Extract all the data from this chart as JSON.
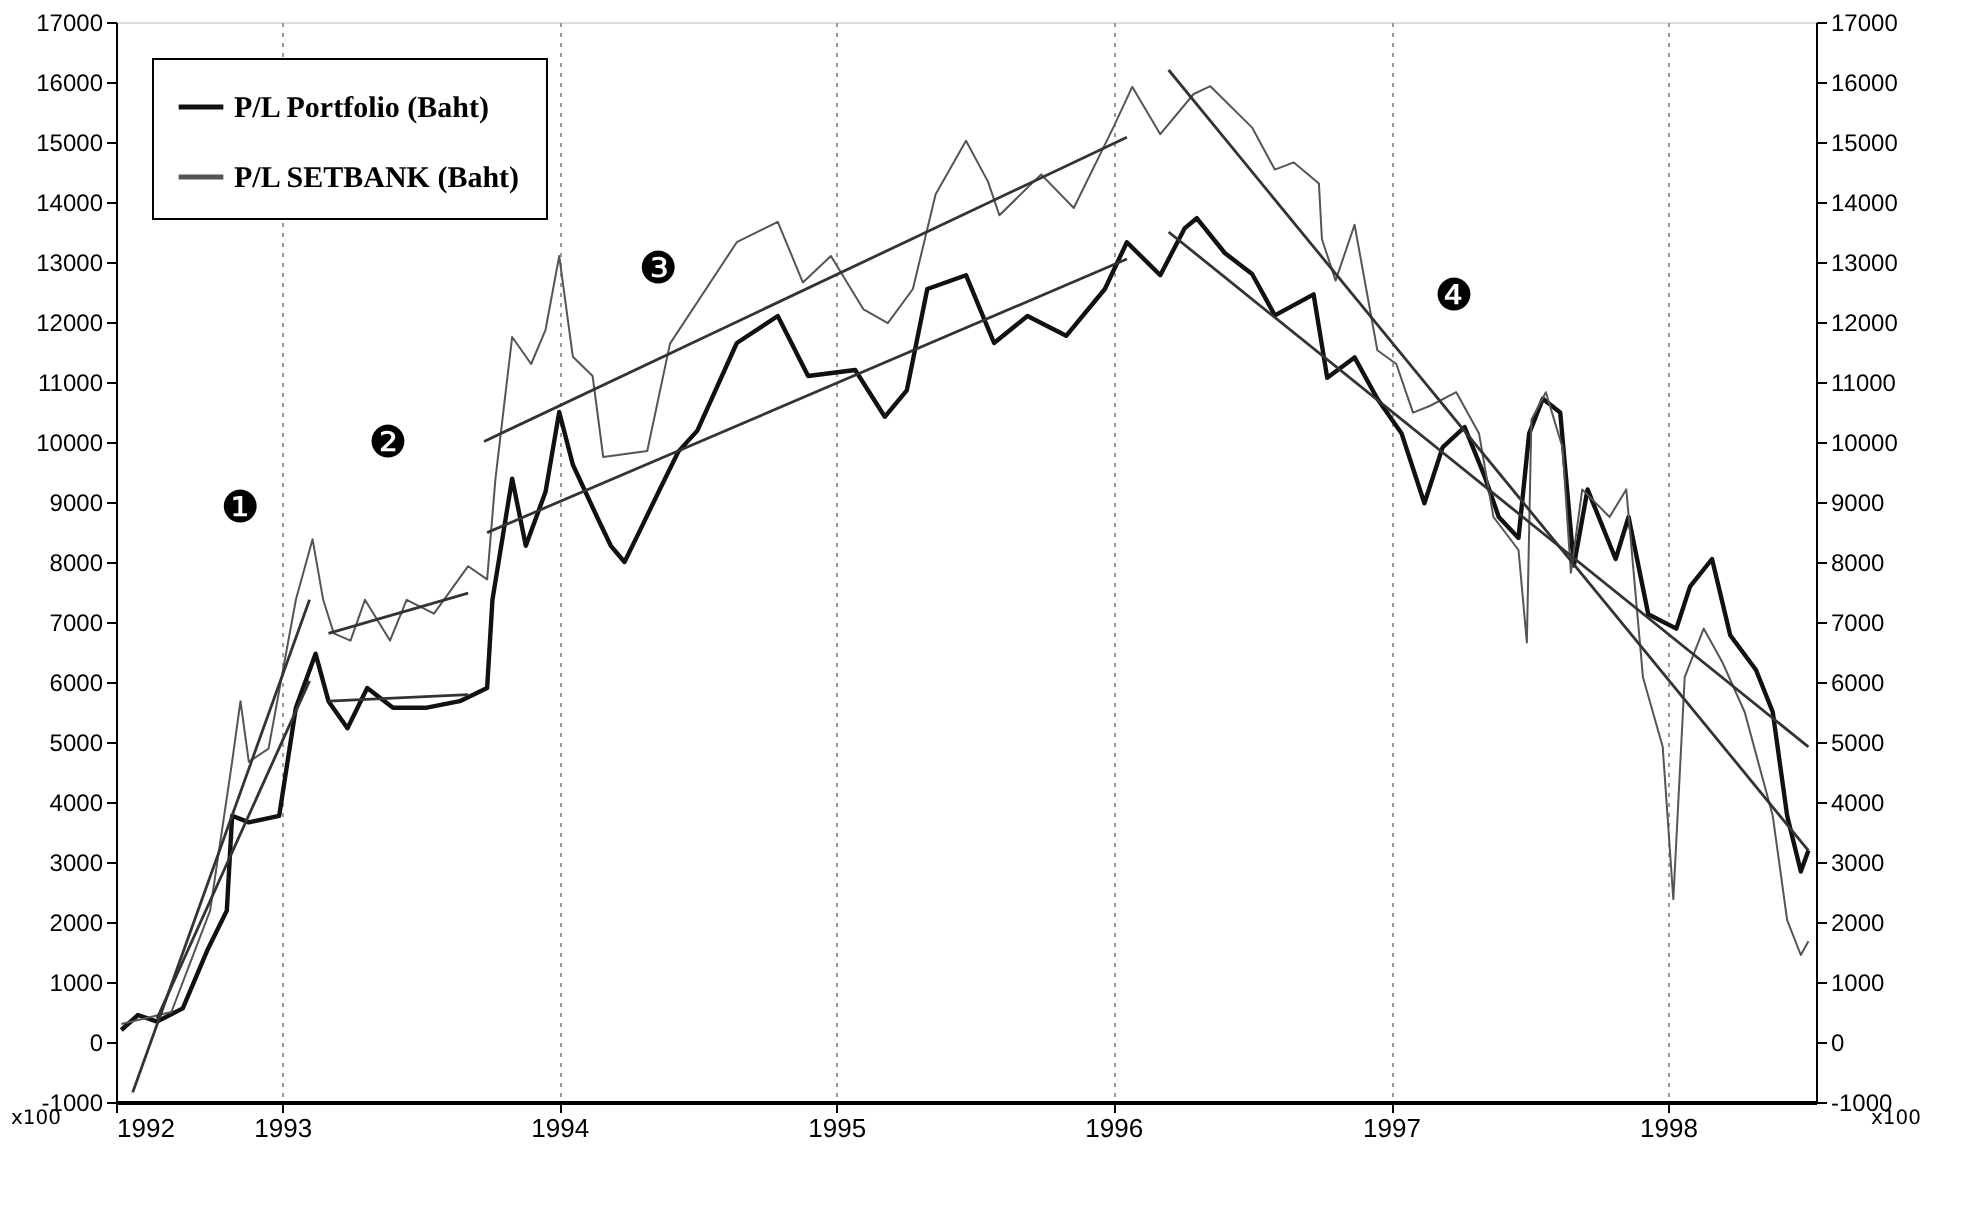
{
  "chart_data": {
    "type": "line",
    "xlim": [
      "1992-05-27",
      "1998-07-15"
    ],
    "xticks": [
      {
        "value": "1992-05-27",
        "label": "1992"
      },
      {
        "value": "1993-01-01",
        "label": "1993"
      },
      {
        "value": "1994-01-01",
        "label": "1994"
      },
      {
        "value": "1995-01-01",
        "label": "1995"
      },
      {
        "value": "1996-01-01",
        "label": "1996"
      },
      {
        "value": "1997-01-01",
        "label": "1997"
      },
      {
        "value": "1998-01-01",
        "label": "1998"
      }
    ],
    "ylim": [
      -1000,
      17000
    ],
    "yticks": [
      -1000,
      0,
      1000,
      2000,
      3000,
      4000,
      5000,
      6000,
      7000,
      8000,
      9000,
      10000,
      11000,
      12000,
      13000,
      14000,
      15000,
      16000,
      17000
    ],
    "y2lim": [
      -1000,
      17000
    ],
    "y2ticks": [
      -1000,
      0,
      1000,
      2000,
      3000,
      4000,
      5000,
      6000,
      7000,
      8000,
      9000,
      10000,
      11000,
      12000,
      13000,
      14000,
      15000,
      16000,
      17000
    ],
    "grid": "x",
    "legend": "top left",
    "series": [
      {
        "name": "P/L Portfolio (Baht)",
        "color": "#111111",
        "x": [
          "1992-06-03",
          "1992-06-25",
          "1992-07-20",
          "1992-08-23",
          "1992-09-24",
          "1992-10-20",
          "1992-10-27",
          "1992-11-18",
          "1992-12-28",
          "1993-01-19",
          "1993-02-14",
          "1993-03-03",
          "1993-03-28",
          "1993-04-23",
          "1993-05-27",
          "1993-07-09",
          "1993-08-23",
          "1993-09-28",
          "1993-10-05",
          "1993-10-31",
          "1993-11-18",
          "1993-12-14",
          "1994-01-01",
          "1994-01-19",
          "1994-02-21",
          "1994-03-10",
          "1994-03-28",
          "1994-04-16",
          "1994-05-12",
          "1994-06-07",
          "1994-07-02",
          "1994-08-23",
          "1994-10-16",
          "1994-11-25",
          "1995-01-26",
          "1995-03-06",
          "1995-04-04",
          "1995-05-01",
          "1995-06-21",
          "1995-07-28",
          "1995-09-10",
          "1995-10-31",
          "1995-12-21",
          "1996-01-19",
          "1996-03-03",
          "1996-04-04",
          "1996-04-20",
          "1996-05-27",
          "1996-07-02",
          "1996-08-01",
          "1996-09-21",
          "1996-10-09",
          "1996-11-14",
          "1996-12-14",
          "1997-01-15",
          "1997-02-14",
          "1997-03-10",
          "1997-04-08",
          "1997-05-04",
          "1997-05-23",
          "1997-06-18",
          "1997-07-02",
          "1997-07-20",
          "1997-08-12",
          "1997-08-30",
          "1997-09-17",
          "1997-10-24",
          "1997-11-10",
          "1997-12-06",
          "1998-01-12",
          "1998-01-30",
          "1998-02-28",
          "1998-03-24",
          "1998-04-27",
          "1998-05-19",
          "1998-06-07",
          "1998-06-25",
          "1998-07-05"
        ],
        "values": [
          200,
          450,
          340,
          560,
          1520,
          2190,
          3770,
          3660,
          3770,
          5570,
          6470,
          5680,
          5230,
          5900,
          5570,
          5570,
          5680,
          5900,
          7370,
          9390,
          8270,
          9170,
          10500,
          9620,
          8720,
          8270,
          8000,
          8490,
          9170,
          9840,
          10190,
          11650,
          12100,
          11100,
          11200,
          10420,
          10860,
          12550,
          12780,
          11650,
          12100,
          11770,
          12550,
          13330,
          12780,
          13560,
          13730,
          13150,
          12800,
          12110,
          12460,
          11070,
          11410,
          10720,
          10140,
          8980,
          9910,
          10250,
          9440,
          8750,
          8400,
          10140,
          10720,
          10490,
          7940,
          9210,
          8050,
          8750,
          7130,
          6890,
          7590,
          8050,
          6780,
          6200,
          5500,
          3770,
          2840,
          3190
        ]
      },
      {
        "name": "P/L SETBANK (Baht)",
        "color": "#555555",
        "x": [
          "1992-06-03",
          "1992-08-08",
          "1992-09-28",
          "1992-10-27",
          "1992-11-07",
          "1992-11-18",
          "1992-12-14",
          "1993-01-19",
          "1993-02-10",
          "1993-02-24",
          "1993-03-10",
          "1993-04-01",
          "1993-04-20",
          "1993-05-23",
          "1993-06-14",
          "1993-07-20",
          "1993-09-03",
          "1993-09-28",
          "1993-10-09",
          "1993-10-31",
          "1993-11-25",
          "1993-12-14",
          "1994-01-01",
          "1994-01-19",
          "1994-02-14",
          "1994-02-28",
          "1994-04-27",
          "1994-05-27",
          "1994-08-23",
          "1994-10-16",
          "1994-11-18",
          "1994-12-25",
          "1995-02-06",
          "1995-03-10",
          "1995-04-12",
          "1995-05-12",
          "1995-06-21",
          "1995-07-20",
          "1995-08-04",
          "1995-09-28",
          "1995-11-10",
          "1996-01-01",
          "1996-01-26",
          "1996-03-03",
          "1996-04-16",
          "1996-05-08",
          "1996-07-02",
          "1996-08-01",
          "1996-08-26",
          "1996-09-28",
          "1996-10-02",
          "1996-10-20",
          "1996-11-14",
          "1996-12-14",
          "1997-01-08",
          "1997-01-30",
          "1997-02-21",
          "1997-03-28",
          "1997-04-27",
          "1997-05-16",
          "1997-06-18",
          "1997-06-29",
          "1997-07-05",
          "1997-07-24",
          "1997-08-15",
          "1997-08-26",
          "1997-09-10",
          "1997-10-16",
          "1997-11-07",
          "1997-11-29",
          "1997-12-25",
          "1998-01-08",
          "1998-01-23",
          "1998-02-17",
          "1998-03-14",
          "1998-04-12",
          "1998-05-19",
          "1998-06-07",
          "1998-06-25",
          "1998-07-05"
        ],
        "values": [
          300,
          500,
          2190,
          4670,
          5680,
          4670,
          4890,
          7370,
          8380,
          7370,
          6810,
          6690,
          7370,
          6690,
          7370,
          7140,
          7930,
          7710,
          9390,
          11750,
          11300,
          11870,
          13100,
          11420,
          11100,
          9750,
          9850,
          11640,
          13330,
          13670,
          12660,
          13100,
          12210,
          11980,
          12550,
          14130,
          15020,
          14340,
          13780,
          14460,
          13900,
          15240,
          15920,
          15130,
          15800,
          15930,
          15240,
          14540,
          14660,
          14310,
          13380,
          12690,
          13620,
          11530,
          11300,
          10490,
          10600,
          10830,
          10140,
          8750,
          8200,
          6660,
          10370,
          10830,
          9910,
          7820,
          9210,
          8750,
          9210,
          6080,
          4920,
          2380,
          6080,
          6890,
          6320,
          5500,
          3770,
          2030,
          1450,
          1680
        ]
      },
      {
        "color": "#333333",
        "x": [
          "1992-06-18",
          "1993-02-06"
        ],
        "values": [
          -840,
          7370
        ]
      },
      {
        "color": "#333333",
        "x": [
          "1992-07-20",
          "1993-02-06"
        ],
        "values": [
          390,
          6020
        ]
      },
      {
        "color": "#333333",
        "x": [
          "1993-03-03",
          "1993-09-03"
        ],
        "values": [
          6810,
          7480
        ]
      },
      {
        "color": "#333333",
        "x": [
          "1993-03-03",
          "1993-09-03"
        ],
        "values": [
          5680,
          5790
        ]
      },
      {
        "color": "#333333",
        "x": [
          "1993-09-24",
          "1996-01-19"
        ],
        "values": [
          10010,
          15080
        ]
      },
      {
        "color": "#333333",
        "x": [
          "1993-09-28",
          "1996-01-19"
        ],
        "values": [
          8490,
          13050
        ]
      },
      {
        "color": "#333333",
        "x": [
          "1996-03-14",
          "1998-07-05"
        ],
        "values": [
          16200,
          3190
        ]
      },
      {
        "color": "#333333",
        "x": [
          "1996-03-14",
          "1998-07-05"
        ],
        "values": [
          13500,
          4920
        ]
      }
    ],
    "annotations": [
      "❶",
      "❷",
      "❸",
      "❹",
      "x100",
      "x100"
    ]
  }
}
